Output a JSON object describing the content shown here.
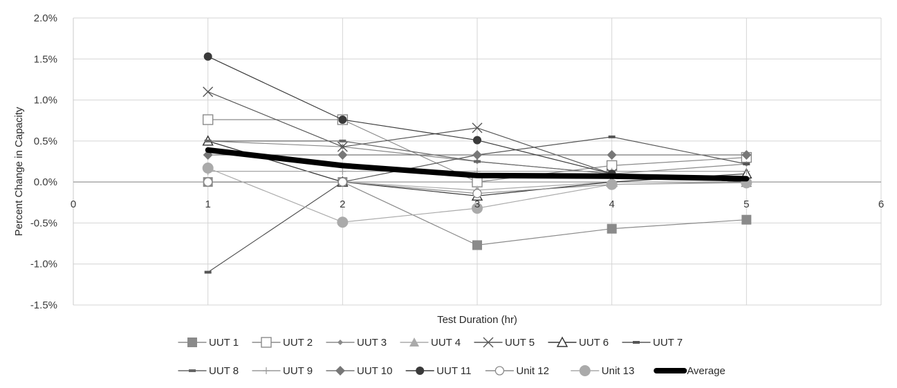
{
  "chart_data": {
    "type": "line",
    "title": "",
    "xlabel": "Test Duration (hr)",
    "ylabel": "Percent Change in Capacity",
    "xlim": [
      0,
      6
    ],
    "ylim": [
      -1.5,
      2.0
    ],
    "x_ticks": [
      "0",
      "1",
      "2",
      "3",
      "4",
      "5",
      "6"
    ],
    "y_ticks": [
      "-1.5%",
      "-1.0%",
      "-0.5%",
      "0.0%",
      "0.5%",
      "1.0%",
      "1.5%",
      "2.0%"
    ],
    "grid": true,
    "legend_position": "bottom",
    "x": [
      1,
      2,
      3,
      4,
      5
    ],
    "series": [
      {
        "name": "UUT 1",
        "marker": "square-filled",
        "color": "#8a8a8a",
        "values": [
          0.0,
          0.0,
          -0.77,
          -0.57,
          -0.46
        ]
      },
      {
        "name": "UUT 2",
        "marker": "square-open",
        "color": "#8a8a8a",
        "values": [
          0.76,
          0.76,
          0.0,
          0.2,
          0.3
        ]
      },
      {
        "name": "UUT 3",
        "marker": "small-diamond",
        "color": "#8a8a8a",
        "values": [
          0.5,
          0.43,
          0.25,
          0.1,
          0.22
        ]
      },
      {
        "name": "UUT 4",
        "marker": "triangle-filled",
        "color": "#aaaaaa",
        "values": [
          0.5,
          0.0,
          -0.1,
          0.0,
          0.0
        ]
      },
      {
        "name": "UUT 5",
        "marker": "x",
        "color": "#555555",
        "values": [
          1.1,
          0.43,
          0.66,
          0.1,
          0.0
        ]
      },
      {
        "name": "UUT 6",
        "marker": "triangle-open",
        "color": "#333333",
        "values": [
          0.5,
          0.0,
          -0.17,
          0.0,
          0.1
        ]
      },
      {
        "name": "UUT 7",
        "marker": "dash",
        "color": "#555555",
        "values": [
          -1.1,
          0.0,
          0.33,
          0.55,
          0.22
        ]
      },
      {
        "name": "UUT 8",
        "marker": "dash",
        "color": "#666666",
        "values": [
          0.5,
          0.5,
          0.25,
          0.1,
          0.0
        ]
      },
      {
        "name": "UUT 9",
        "marker": "plus",
        "color": "#999999",
        "values": [
          0.13,
          0.13,
          0.13,
          0.13,
          0.13
        ]
      },
      {
        "name": "UUT 10",
        "marker": "diamond-filled",
        "color": "#777777",
        "values": [
          0.33,
          0.33,
          0.33,
          0.33,
          0.33
        ]
      },
      {
        "name": "UUT 11",
        "marker": "circle-filled",
        "color": "#3a3a3a",
        "values": [
          1.53,
          0.76,
          0.51,
          0.1,
          0.0
        ]
      },
      {
        "name": "Unit 12",
        "marker": "circle-open",
        "color": "#8a8a8a",
        "values": [
          0.0,
          0.0,
          -0.14,
          -0.03,
          0.0
        ]
      },
      {
        "name": "Unit 13",
        "marker": "circle-filled-large",
        "color": "#aaaaaa",
        "values": [
          0.17,
          -0.49,
          -0.32,
          -0.03,
          -0.01
        ]
      },
      {
        "name": "Average",
        "marker": "none",
        "color": "#000000",
        "line_width": "heavy",
        "values": [
          0.39,
          0.2,
          0.08,
          0.07,
          0.04
        ]
      }
    ]
  }
}
